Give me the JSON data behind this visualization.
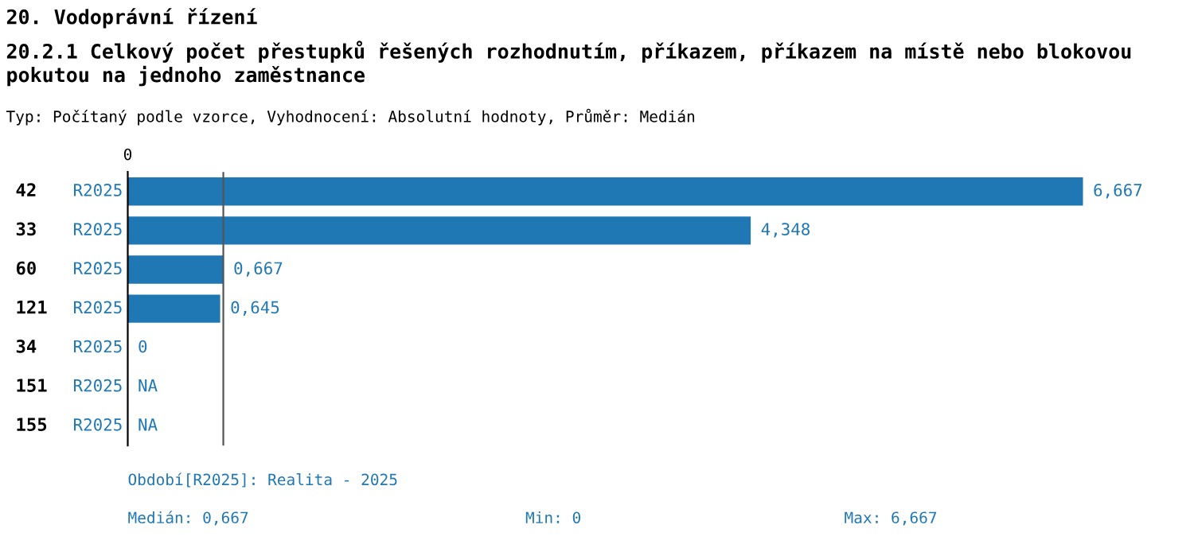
{
  "chart_data": {
    "type": "bar",
    "orientation": "horizontal",
    "title": "20. Vodoprávní řízení",
    "subtitle": "20.2.1 Celkový počet přestupků řešených rozhodnutím, příkazem, příkazem na místě nebo blokovou pokutou na jednoho zaměstnance",
    "categories": [
      "42",
      "33",
      "60",
      "121",
      "34",
      "151",
      "155"
    ],
    "series": [
      {
        "name": "R2025",
        "color": "#1f77b4",
        "values": [
          6.667,
          4.348,
          0.667,
          0.645,
          0,
          null,
          null
        ],
        "value_labels": [
          "6,667",
          "4,348",
          "0,667",
          "0,645",
          "0",
          "NA",
          "NA"
        ]
      }
    ],
    "ref_lines": [
      {
        "axis": "x",
        "value": 0.667,
        "color": "#555555"
      }
    ],
    "annotations": [
      "0",
      "Typ: Počítaný podle vzorce, Vyhodnocení: Absolutní hodnoty, Průměr: Medián",
      "Období[R2025]: Realita - 2025",
      "Medián: 0,667",
      "Min: 0",
      "Max: 6,667"
    ],
    "grid": false,
    "legend": false
  }
}
